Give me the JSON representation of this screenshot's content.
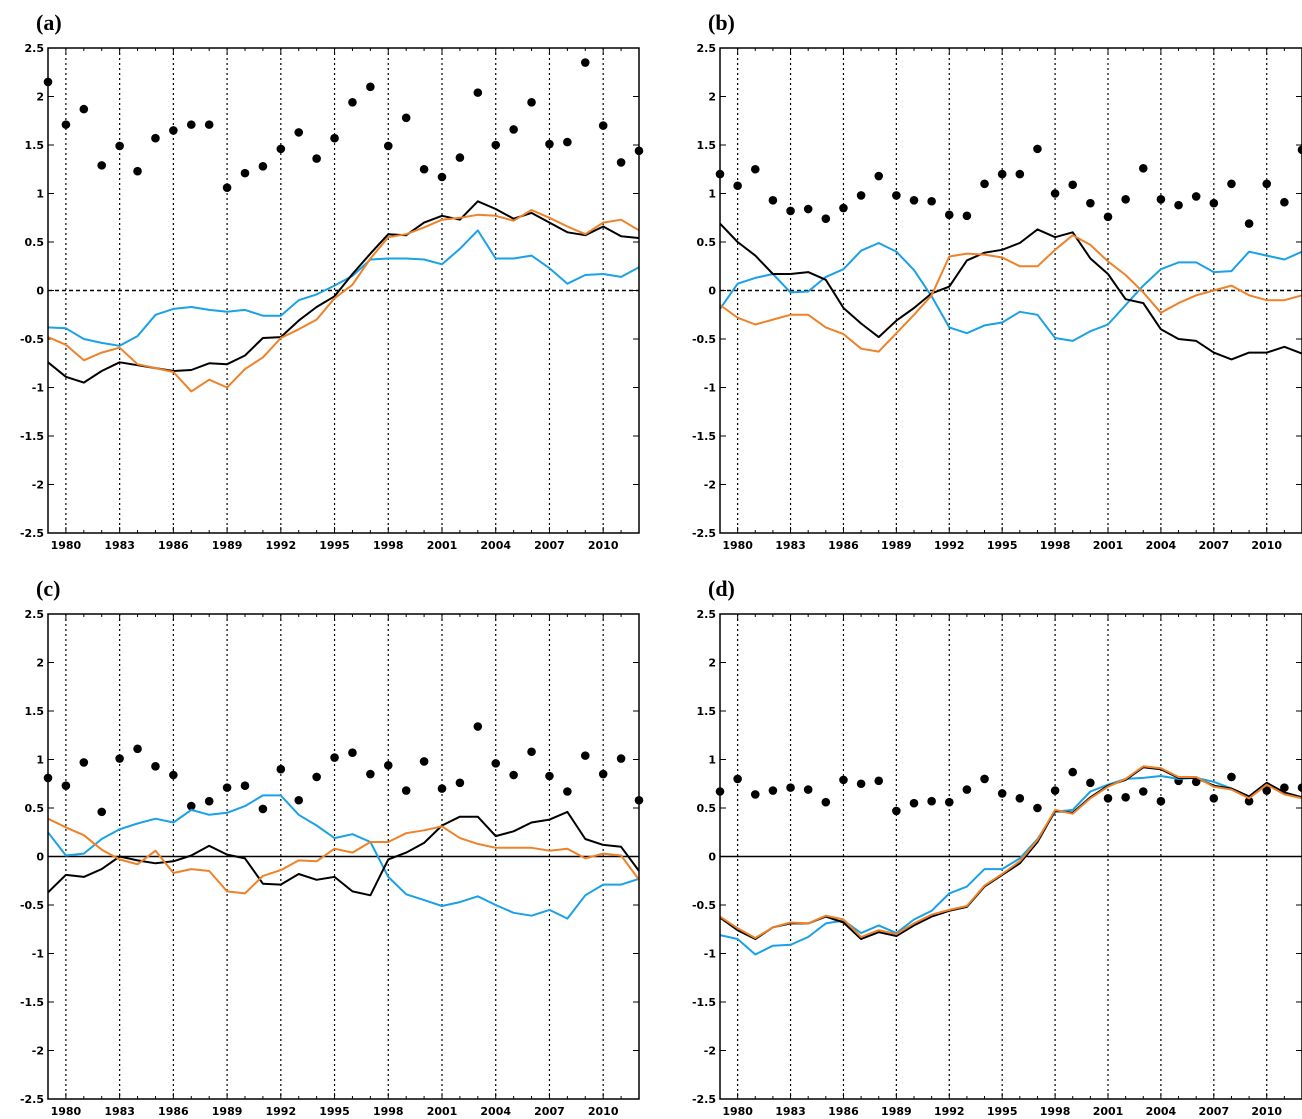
{
  "chart_data": [
    {
      "panel_label": "(a)",
      "type": "line",
      "x_start": 1979,
      "xlim": [
        1979,
        2012
      ],
      "ylim": [
        -2.5,
        2.5
      ],
      "xticks": [
        "1980",
        "1983",
        "1986",
        "1989",
        "1992",
        "1995",
        "1998",
        "2001",
        "2004",
        "2007",
        "2010"
      ],
      "yticks": [
        "2.5",
        "2",
        "1.5",
        "1",
        "0.5",
        "0",
        "-0.5",
        "-1",
        "-1.5",
        "-2",
        "-2.5"
      ],
      "grid": "dotted vertical lines at x ticks",
      "zero_line": "dashed",
      "series": [
        {
          "style": "scatter",
          "color": "#000000",
          "values": [
            2.15,
            1.71,
            1.87,
            1.29,
            1.49,
            1.23,
            1.57,
            1.65,
            1.71,
            1.71,
            1.06,
            1.21,
            1.28,
            1.46,
            1.63,
            1.36,
            1.57,
            1.94,
            2.1,
            1.49,
            1.78,
            1.25,
            1.17,
            1.37,
            2.04,
            1.5,
            1.66,
            1.94,
            1.51,
            1.53,
            2.35,
            1.7,
            1.32,
            1.44
          ]
        },
        {
          "style": "line",
          "color": "#1aa1e6",
          "values": [
            -0.38,
            -0.39,
            -0.5,
            -0.54,
            -0.57,
            -0.47,
            -0.25,
            -0.19,
            -0.17,
            -0.2,
            -0.22,
            -0.2,
            -0.26,
            -0.26,
            -0.1,
            -0.04,
            0.05,
            0.15,
            0.32,
            0.33,
            0.33,
            0.32,
            0.27,
            0.43,
            0.62,
            0.33,
            0.33,
            0.36,
            0.23,
            0.07,
            0.16,
            0.17,
            0.14,
            0.24
          ]
        },
        {
          "style": "line",
          "color": "#000000",
          "values": [
            -0.74,
            -0.89,
            -0.95,
            -0.83,
            -0.74,
            -0.77,
            -0.8,
            -0.83,
            -0.82,
            -0.75,
            -0.76,
            -0.67,
            -0.49,
            -0.48,
            -0.31,
            -0.17,
            -0.06,
            0.17,
            0.38,
            0.58,
            0.57,
            0.7,
            0.77,
            0.73,
            0.92,
            0.84,
            0.74,
            0.8,
            0.7,
            0.6,
            0.57,
            0.66,
            0.56,
            0.54
          ]
        },
        {
          "style": "line",
          "color": "#ee8229",
          "values": [
            -0.48,
            -0.56,
            -0.72,
            -0.64,
            -0.59,
            -0.76,
            -0.8,
            -0.84,
            -1.04,
            -0.92,
            -1.0,
            -0.81,
            -0.69,
            -0.49,
            -0.4,
            -0.3,
            -0.08,
            0.06,
            0.33,
            0.55,
            0.58,
            0.65,
            0.73,
            0.75,
            0.78,
            0.77,
            0.72,
            0.83,
            0.75,
            0.66,
            0.58,
            0.7,
            0.73,
            0.62
          ]
        }
      ]
    },
    {
      "panel_label": "(b)",
      "type": "line",
      "x_start": 1979,
      "xlim": [
        1979,
        2012
      ],
      "ylim": [
        -2.5,
        2.5
      ],
      "xticks": [
        "1980",
        "1983",
        "1986",
        "1989",
        "1992",
        "1995",
        "1998",
        "2001",
        "2004",
        "2007",
        "2010"
      ],
      "yticks": [
        "2.5",
        "2",
        "1.5",
        "1",
        "0.5",
        "0",
        "-0.5",
        "-1",
        "-1.5",
        "-2",
        "-2.5"
      ],
      "grid": "dotted vertical lines at x ticks",
      "zero_line": "dashed",
      "series": [
        {
          "style": "scatter",
          "color": "#000000",
          "values": [
            1.2,
            1.08,
            1.25,
            0.93,
            0.82,
            0.84,
            0.74,
            0.85,
            0.98,
            1.18,
            0.98,
            0.93,
            0.92,
            0.78,
            0.77,
            1.1,
            1.2,
            1.2,
            1.46,
            1.0,
            1.09,
            0.9,
            0.76,
            0.94,
            1.26,
            0.94,
            0.88,
            0.97,
            0.9,
            1.1,
            0.69,
            1.1,
            0.91,
            1.45
          ]
        },
        {
          "style": "line",
          "color": "#1aa1e6",
          "values": [
            -0.19,
            0.07,
            0.13,
            0.17,
            -0.02,
            -0.01,
            0.14,
            0.22,
            0.41,
            0.49,
            0.4,
            0.21,
            -0.06,
            -0.38,
            -0.44,
            -0.36,
            -0.33,
            -0.22,
            -0.25,
            -0.49,
            -0.52,
            -0.42,
            -0.35,
            -0.15,
            0.05,
            0.22,
            0.29,
            0.29,
            0.19,
            0.2,
            0.4,
            0.36,
            0.32,
            0.4
          ]
        },
        {
          "style": "line",
          "color": "#000000",
          "values": [
            0.69,
            0.5,
            0.36,
            0.17,
            0.17,
            0.19,
            0.11,
            -0.18,
            -0.34,
            -0.48,
            -0.31,
            -0.18,
            -0.03,
            0.04,
            0.31,
            0.39,
            0.42,
            0.49,
            0.63,
            0.55,
            0.6,
            0.33,
            0.17,
            -0.09,
            -0.13,
            -0.4,
            -0.5,
            -0.52,
            -0.64,
            -0.71,
            -0.64,
            -0.64,
            -0.58,
            -0.65
          ]
        },
        {
          "style": "line",
          "color": "#ee8229",
          "values": [
            -0.15,
            -0.28,
            -0.35,
            -0.3,
            -0.25,
            -0.25,
            -0.38,
            -0.45,
            -0.6,
            -0.63,
            -0.44,
            -0.25,
            -0.05,
            0.35,
            0.38,
            0.37,
            0.34,
            0.25,
            0.25,
            0.42,
            0.57,
            0.47,
            0.3,
            0.16,
            -0.02,
            -0.23,
            -0.13,
            -0.05,
            0.0,
            0.05,
            -0.05,
            -0.1,
            -0.1,
            -0.05
          ]
        }
      ]
    },
    {
      "panel_label": "(c)",
      "type": "line",
      "x_start": 1979,
      "xlim": [
        1979,
        2012
      ],
      "ylim": [
        -2.5,
        2.5
      ],
      "xticks": [
        "1980",
        "1983",
        "1986",
        "1989",
        "1992",
        "1995",
        "1998",
        "2001",
        "2004",
        "2007",
        "2010"
      ],
      "yticks": [
        "2.5",
        "2",
        "1.5",
        "1",
        "0.5",
        "0",
        "-0.5",
        "-1",
        "-1.5",
        "-2",
        "-2.5"
      ],
      "grid": "dotted vertical lines at x ticks",
      "zero_line": "solid",
      "series": [
        {
          "style": "scatter",
          "color": "#000000",
          "values": [
            0.81,
            0.73,
            0.97,
            0.46,
            1.01,
            1.11,
            0.93,
            0.84,
            0.52,
            0.57,
            0.71,
            0.73,
            0.49,
            0.9,
            0.58,
            0.82,
            1.02,
            1.07,
            0.85,
            0.94,
            0.68,
            0.98,
            0.7,
            0.76,
            1.34,
            0.96,
            0.84,
            1.08,
            0.83,
            0.67,
            1.04,
            0.85,
            1.01,
            0.58
          ]
        },
        {
          "style": "line",
          "color": "#1aa1e6",
          "values": [
            0.25,
            0.01,
            0.03,
            0.18,
            0.28,
            0.34,
            0.39,
            0.35,
            0.48,
            0.43,
            0.45,
            0.52,
            0.63,
            0.63,
            0.43,
            0.32,
            0.19,
            0.23,
            0.15,
            -0.21,
            -0.39,
            -0.45,
            -0.51,
            -0.47,
            -0.41,
            -0.5,
            -0.58,
            -0.61,
            -0.55,
            -0.64,
            -0.4,
            -0.29,
            -0.29,
            -0.23
          ]
        },
        {
          "style": "line",
          "color": "#000000",
          "values": [
            -0.37,
            -0.19,
            -0.21,
            -0.13,
            0.0,
            -0.04,
            -0.07,
            -0.05,
            0.01,
            0.11,
            0.02,
            -0.02,
            -0.28,
            -0.29,
            -0.18,
            -0.24,
            -0.21,
            -0.36,
            -0.4,
            -0.03,
            0.04,
            0.14,
            0.32,
            0.41,
            0.41,
            0.21,
            0.26,
            0.35,
            0.38,
            0.46,
            0.18,
            0.12,
            0.1,
            -0.15
          ]
        },
        {
          "style": "line",
          "color": "#ee8229",
          "values": [
            0.39,
            0.3,
            0.22,
            0.07,
            -0.03,
            -0.08,
            0.06,
            -0.17,
            -0.13,
            -0.15,
            -0.36,
            -0.38,
            -0.2,
            -0.14,
            -0.04,
            -0.05,
            0.08,
            0.04,
            0.15,
            0.15,
            0.24,
            0.27,
            0.31,
            0.19,
            0.13,
            0.09,
            0.09,
            0.09,
            0.06,
            0.08,
            -0.02,
            0.03,
            0.01,
            -0.24
          ]
        }
      ]
    },
    {
      "panel_label": "(d)",
      "type": "line",
      "x_start": 1979,
      "xlim": [
        1979,
        2012
      ],
      "ylim": [
        -2.5,
        2.5
      ],
      "xticks": [
        "1980",
        "1983",
        "1986",
        "1989",
        "1992",
        "1995",
        "1998",
        "2001",
        "2004",
        "2007",
        "2010"
      ],
      "yticks": [
        "2.5",
        "2",
        "1.5",
        "1",
        "0.5",
        "0",
        "-0.5",
        "-1",
        "-1.5",
        "-2",
        "-2.5"
      ],
      "grid": "dotted vertical lines at x ticks",
      "zero_line": "solid",
      "series": [
        {
          "style": "scatter",
          "color": "#000000",
          "values": [
            0.67,
            0.8,
            0.64,
            0.68,
            0.71,
            0.69,
            0.56,
            0.79,
            0.75,
            0.78,
            0.47,
            0.55,
            0.57,
            0.56,
            0.69,
            0.8,
            0.65,
            0.6,
            0.5,
            0.68,
            0.87,
            0.76,
            0.6,
            0.61,
            0.67,
            0.57,
            0.78,
            0.77,
            0.6,
            0.82,
            0.57,
            0.68,
            0.71,
            0.71
          ]
        },
        {
          "style": "line",
          "color": "#1aa1e6",
          "values": [
            -0.81,
            -0.85,
            -1.01,
            -0.92,
            -0.91,
            -0.83,
            -0.69,
            -0.66,
            -0.79,
            -0.71,
            -0.79,
            -0.65,
            -0.56,
            -0.38,
            -0.31,
            -0.13,
            -0.13,
            -0.02,
            0.18,
            0.46,
            0.48,
            0.67,
            0.74,
            0.8,
            0.81,
            0.83,
            0.8,
            0.81,
            0.77,
            0.7,
            0.61,
            0.74,
            0.66,
            0.6
          ]
        },
        {
          "style": "line",
          "color": "#000000",
          "values": [
            -0.63,
            -0.76,
            -0.85,
            -0.73,
            -0.69,
            -0.69,
            -0.62,
            -0.68,
            -0.85,
            -0.78,
            -0.82,
            -0.71,
            -0.62,
            -0.56,
            -0.52,
            -0.31,
            -0.19,
            -0.07,
            0.15,
            0.47,
            0.45,
            0.61,
            0.73,
            0.79,
            0.92,
            0.9,
            0.81,
            0.81,
            0.73,
            0.7,
            0.62,
            0.76,
            0.66,
            0.61
          ]
        },
        {
          "style": "line",
          "color": "#ee8229",
          "values": [
            -0.62,
            -0.74,
            -0.84,
            -0.73,
            -0.68,
            -0.69,
            -0.61,
            -0.65,
            -0.83,
            -0.76,
            -0.8,
            -0.69,
            -0.6,
            -0.55,
            -0.51,
            -0.3,
            -0.18,
            -0.05,
            0.17,
            0.48,
            0.44,
            0.6,
            0.72,
            0.8,
            0.93,
            0.91,
            0.82,
            0.82,
            0.72,
            0.69,
            0.6,
            0.74,
            0.64,
            0.6
          ]
        }
      ]
    }
  ]
}
